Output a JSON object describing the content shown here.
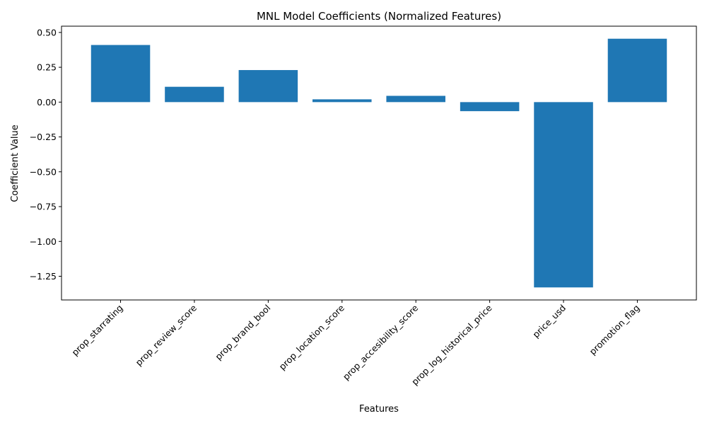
{
  "chart_data": {
    "type": "bar",
    "title": "MNL Model Coefficients (Normalized Features)",
    "xlabel": "Features",
    "ylabel": "Coefficient Value",
    "categories": [
      "prop_starrating",
      "prop_review_score",
      "prop_brand_bool",
      "prop_location_score",
      "prop_accesibility_score",
      "prop_log_historical_price",
      "price_usd",
      "promotion_flag"
    ],
    "values": [
      0.41,
      0.11,
      0.23,
      0.02,
      0.045,
      -0.065,
      -1.33,
      0.455
    ],
    "ylim": [
      -1.42,
      0.545
    ],
    "yticks": [
      -1.25,
      -1.0,
      -0.75,
      -0.5,
      -0.25,
      0.0,
      0.25,
      0.5
    ],
    "ytick_labels": [
      "−1.25",
      "−1.00",
      "−0.75",
      "−0.50",
      "−0.25",
      "0.00",
      "0.25",
      "0.50"
    ],
    "bar_color": "#1f77b4",
    "grid": false,
    "legend": "none"
  }
}
